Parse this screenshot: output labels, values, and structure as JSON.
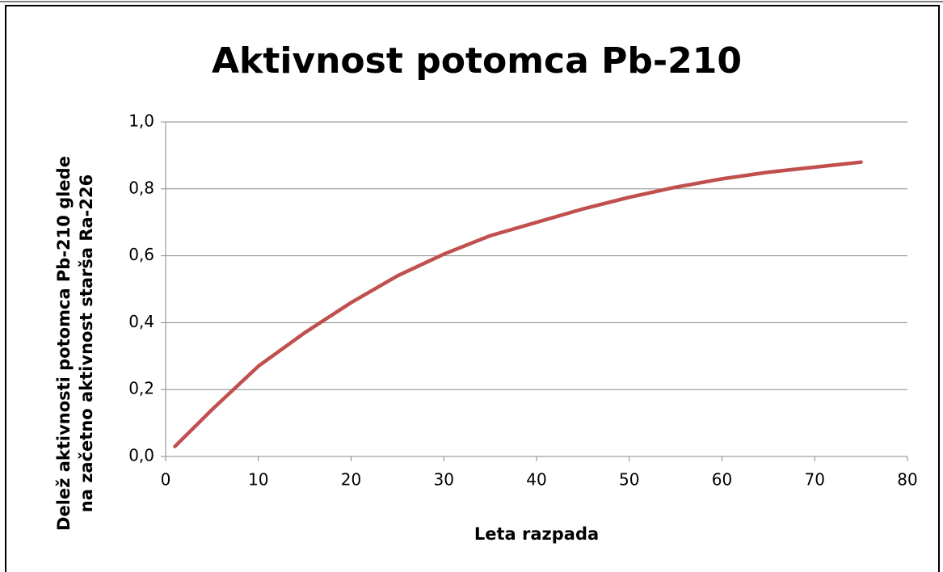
{
  "chart_data": {
    "type": "line",
    "title": "Aktivnost potomca Pb-210",
    "xlabel": "Leta razpada",
    "ylabel": [
      "Delež aktivnosti potomca  Pb-210 glede",
      "na začetno aktivnost starša Ra-226"
    ],
    "x": [
      1,
      5,
      10,
      15,
      20,
      25,
      30,
      35,
      40,
      45,
      50,
      55,
      60,
      65,
      70,
      75
    ],
    "values": [
      0.03,
      0.14,
      0.27,
      0.37,
      0.46,
      0.54,
      0.605,
      0.66,
      0.7,
      0.74,
      0.775,
      0.805,
      0.83,
      0.85,
      0.865,
      0.88
    ],
    "color": "#c0504d",
    "xlim": [
      0,
      80
    ],
    "xticks": [
      0,
      10,
      20,
      30,
      40,
      50,
      60,
      70,
      80
    ],
    "ylim": [
      0,
      1
    ],
    "yticks": [
      {
        "value": 0,
        "label": "0,0"
      },
      {
        "value": 0.2,
        "label": "0,2"
      },
      {
        "value": 0.4,
        "label": "0,4"
      },
      {
        "value": 0.6,
        "label": "0,6"
      },
      {
        "value": 0.8,
        "label": "0,8"
      },
      {
        "value": 1,
        "label": "1,0"
      }
    ],
    "grid": true
  }
}
